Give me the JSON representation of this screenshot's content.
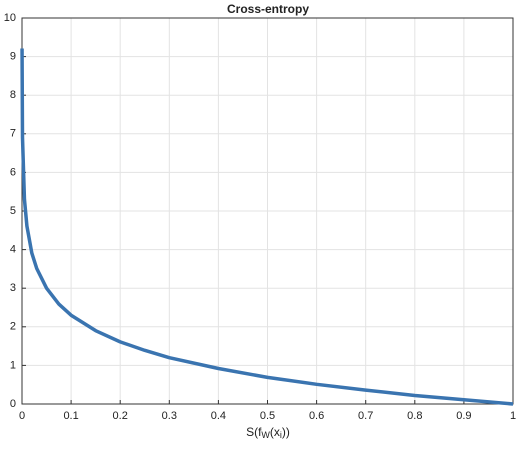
{
  "chart_data": {
    "type": "line",
    "title": "Cross-entropy",
    "xlabel_parts": [
      "S(f",
      "W",
      "(x",
      "i",
      "))"
    ],
    "x": [
      0.0001,
      0.001,
      0.005,
      0.01,
      0.02,
      0.03,
      0.05,
      0.075,
      0.1,
      0.15,
      0.2,
      0.25,
      0.3,
      0.4,
      0.5,
      0.6,
      0.7,
      0.8,
      0.9,
      1
    ],
    "series": [
      {
        "color": "#3a74b0",
        "values": [
          9.21,
          6.91,
          5.3,
          4.61,
          3.91,
          3.51,
          3.0,
          2.59,
          2.3,
          1.9,
          1.61,
          1.39,
          1.2,
          0.92,
          0.69,
          0.51,
          0.36,
          0.22,
          0.11,
          0
        ]
      }
    ],
    "xlim": [
      0,
      1
    ],
    "xticks": [
      0,
      0.1,
      0.2,
      0.3,
      0.4,
      0.5,
      0.6,
      0.7,
      0.8,
      0.9,
      1
    ],
    "ylim": [
      0,
      10
    ],
    "yticks": [
      0,
      1,
      2,
      3,
      4,
      5,
      6,
      7,
      8,
      9,
      10
    ],
    "grid": true
  }
}
